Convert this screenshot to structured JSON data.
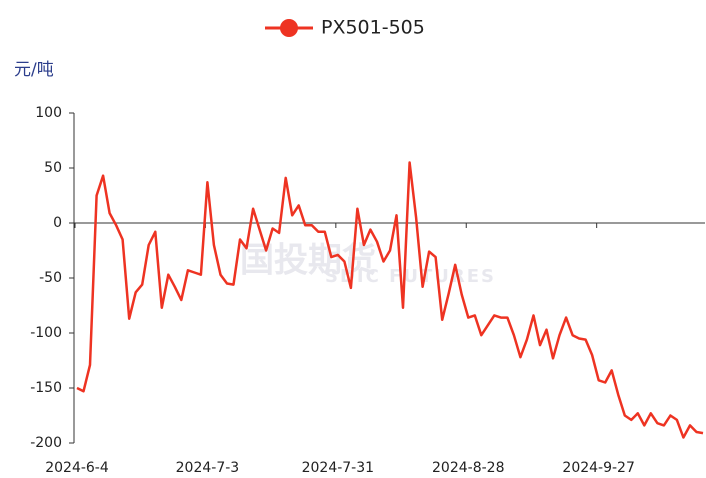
{
  "chart_data": {
    "type": "line",
    "series": [
      {
        "name": "PX501-505",
        "color": "#ee3322",
        "values": [
          -150,
          -153,
          -129,
          25,
          43,
          9,
          -2,
          -15,
          -87,
          -63,
          -56,
          -20,
          -8,
          -77,
          -47,
          -58,
          -70,
          -43,
          -45,
          -47,
          37,
          -20,
          -47,
          -55,
          -56,
          -15,
          -23,
          13,
          -6,
          -25,
          -5,
          -9,
          41,
          7,
          16,
          -2,
          -2,
          -8,
          -8,
          -31,
          -29,
          -35,
          -59,
          13,
          -20,
          -6,
          -17,
          -35,
          -25,
          7,
          -77,
          55,
          5,
          -58,
          -26,
          -31,
          -88,
          -64,
          -38,
          -65,
          -86,
          -84,
          -102,
          -93,
          -84,
          -86,
          -86,
          -102,
          -122,
          -106,
          -84,
          -111,
          -97,
          -123,
          -102,
          -86,
          -102,
          -105,
          -106,
          -120,
          -143,
          -145,
          -134,
          -156,
          -175,
          -179,
          -173,
          -184,
          -173,
          -182,
          -184,
          -175,
          -179,
          -195,
          -184,
          -190,
          -191
        ]
      }
    ],
    "categories": [
      "2024-6-4",
      null,
      null,
      null,
      null,
      null,
      null,
      null,
      null,
      null,
      null,
      null,
      null,
      null,
      null,
      null,
      null,
      null,
      null,
      null,
      "2024-7-3",
      null,
      null,
      null,
      null,
      null,
      null,
      null,
      null,
      null,
      null,
      null,
      null,
      null,
      null,
      null,
      null,
      null,
      null,
      null,
      "2024-7-31",
      null,
      null,
      null,
      null,
      null,
      null,
      null,
      null,
      null,
      null,
      null,
      null,
      null,
      null,
      null,
      null,
      null,
      null,
      null,
      "2024-8-28",
      null,
      null,
      null,
      null,
      null,
      null,
      null,
      null,
      null,
      null,
      null,
      null,
      null,
      null,
      null,
      null,
      null,
      null,
      null,
      "2024-9-27",
      null,
      null,
      null,
      null,
      null,
      null,
      null,
      null,
      null,
      null,
      null,
      null,
      null,
      null,
      null,
      null
    ],
    "y_label": "元/吨",
    "ylim": [
      -200,
      100
    ],
    "yticks": [
      100,
      50,
      0,
      -50,
      -100,
      -150,
      -200
    ],
    "legend": "top",
    "watermark": {
      "cn": "国投期货",
      "en": "SDIC FUTURES"
    }
  }
}
